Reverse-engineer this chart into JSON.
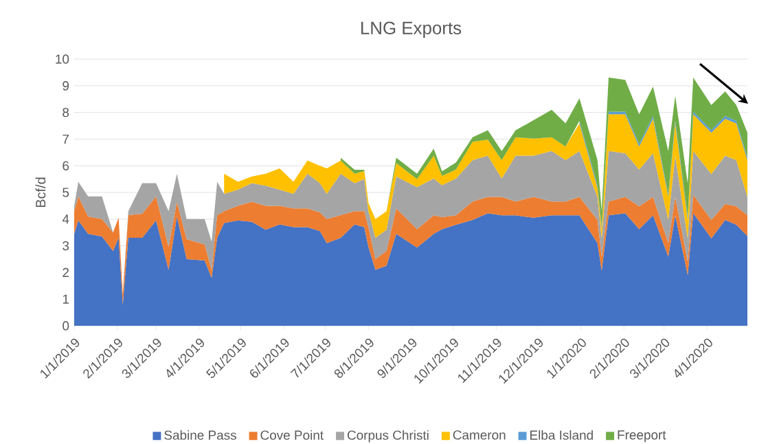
{
  "chart_data": {
    "type": "area",
    "title": "LNG Exports",
    "ylabel": "Bcf/d",
    "stacked": true,
    "grid": "y",
    "legend": "bottom",
    "x": [
      "2019-01-01",
      "2019-01-04",
      "2019-01-11",
      "2019-01-21",
      "2019-01-29",
      "2019-02-02",
      "2019-02-05",
      "2019-02-09",
      "2019-02-19",
      "2019-03-01",
      "2019-03-10",
      "2019-03-16",
      "2019-03-23",
      "2019-04-05",
      "2019-04-10",
      "2019-04-14",
      "2019-04-19",
      "2019-04-29",
      "2019-05-09",
      "2019-05-19",
      "2019-05-29",
      "2019-06-08",
      "2019-06-18",
      "2019-06-27",
      "2019-07-02",
      "2019-07-12",
      "2019-07-22",
      "2019-07-29",
      "2019-08-01",
      "2019-08-06",
      "2019-08-14",
      "2019-08-21",
      "2019-09-05",
      "2019-09-17",
      "2019-09-23",
      "2019-10-03",
      "2019-10-15",
      "2019-10-26",
      "2019-11-05",
      "2019-11-15",
      "2019-11-28",
      "2019-12-11",
      "2019-12-21",
      "2019-12-31",
      "2020-01-13",
      "2020-01-16",
      "2020-01-21",
      "2020-02-02",
      "2020-02-12",
      "2020-02-22",
      "2020-03-04",
      "2020-03-09",
      "2020-03-18",
      "2020-03-22",
      "2020-04-04",
      "2020-04-14",
      "2020-04-22",
      "2020-04-30"
    ],
    "series": [
      {
        "name": "Sabine Pass",
        "color": "#4472c4",
        "values": [
          3.45,
          3.95,
          3.45,
          3.35,
          2.8,
          3.3,
          0.8,
          3.3,
          3.3,
          3.95,
          2.1,
          4.1,
          2.5,
          2.45,
          1.8,
          3.3,
          3.85,
          3.95,
          3.9,
          3.6,
          3.8,
          3.7,
          3.7,
          3.55,
          3.1,
          3.3,
          3.8,
          3.7,
          2.95,
          2.1,
          2.25,
          3.45,
          2.93,
          3.45,
          3.62,
          3.79,
          3.97,
          4.22,
          4.14,
          4.14,
          4.05,
          4.14,
          4.14,
          4.14,
          3.1,
          2.07,
          4.14,
          4.22,
          3.62,
          4.14,
          2.59,
          4.14,
          1.9,
          4.22,
          3.28,
          3.97,
          3.79,
          3.36
        ]
      },
      {
        "name": "Cove Point",
        "color": "#ed7d31",
        "values": [
          0.85,
          0.9,
          0.65,
          0.65,
          0.7,
          0.75,
          0.4,
          0.85,
          0.9,
          0.9,
          0.85,
          0.55,
          0.75,
          0.6,
          0.3,
          0.85,
          0.45,
          0.55,
          0.75,
          0.9,
          0.7,
          0.7,
          0.7,
          0.7,
          0.9,
          0.85,
          0.5,
          0.6,
          0.75,
          0.4,
          0.55,
          0.95,
          0.69,
          0.69,
          0.45,
          0.35,
          0.69,
          0.61,
          0.69,
          0.52,
          0.78,
          0.52,
          0.52,
          0.69,
          0.87,
          0.52,
          0.52,
          0.61,
          0.86,
          0.69,
          0.51,
          0.69,
          0.51,
          0.69,
          0.69,
          0.6,
          0.69,
          0.78
        ]
      },
      {
        "name": "Corpus Christi",
        "color": "#a5a5a5",
        "values": [
          0.2,
          0.55,
          0.75,
          0.85,
          0,
          0,
          0,
          0.15,
          1.15,
          0.5,
          1.35,
          1.05,
          0.75,
          0.95,
          1.05,
          1.25,
          0.65,
          0.6,
          0.7,
          0.75,
          0.6,
          0.55,
          1.3,
          1.1,
          0.95,
          1.55,
          1.05,
          1.2,
          0.6,
          0.8,
          0.8,
          1.2,
          1.58,
          1.38,
          1.2,
          1.38,
          1.55,
          1.55,
          0.69,
          1.72,
          1.55,
          1.89,
          1.55,
          1.72,
          0.86,
          0.69,
          1.89,
          1.64,
          1.38,
          1.64,
          0.87,
          1.55,
          0.87,
          1.64,
          1.72,
          1.81,
          1.73,
          0.69
        ]
      },
      {
        "name": "Cameron",
        "color": "#ffc000",
        "values": [
          null,
          null,
          null,
          null,
          null,
          null,
          null,
          null,
          null,
          null,
          null,
          null,
          null,
          null,
          null,
          null,
          0.75,
          0.3,
          0.25,
          0.45,
          0.8,
          0.45,
          0.5,
          0.65,
          0.95,
          0.5,
          0.35,
          0.3,
          0.3,
          0.7,
          0.7,
          0.5,
          0.3,
          0.86,
          0.35,
          0.34,
          0.69,
          0.6,
          0.69,
          0.69,
          0.64,
          0.52,
          0.51,
          1.04,
          0.34,
          0.34,
          1.38,
          1.46,
          0.86,
          1.29,
          0.86,
          1.21,
          0.69,
          1.38,
          1.55,
          1.38,
          1.38,
          1.38
        ]
      },
      {
        "name": "Elba Island",
        "color": "#5b9bd5",
        "values": [
          null,
          null,
          null,
          null,
          null,
          null,
          null,
          null,
          null,
          null,
          null,
          null,
          null,
          null,
          null,
          null,
          null,
          null,
          null,
          null,
          null,
          null,
          null,
          null,
          null,
          null,
          null,
          null,
          null,
          null,
          null,
          null,
          null,
          null,
          null,
          null,
          null,
          null,
          null,
          null,
          null,
          null,
          null,
          0.1,
          0.1,
          0.1,
          0.1,
          0.1,
          0.1,
          0.1,
          0.1,
          0.1,
          0.1,
          0.1,
          0.1,
          0.1,
          0.1,
          0.1
        ]
      },
      {
        "name": "Freeport",
        "color": "#70ad47",
        "values": [
          null,
          null,
          null,
          null,
          null,
          null,
          null,
          null,
          null,
          null,
          null,
          null,
          null,
          null,
          null,
          null,
          null,
          null,
          null,
          null,
          null,
          null,
          null,
          null,
          null,
          0.1,
          0.15,
          0.05,
          0,
          0,
          0,
          0.2,
          0.2,
          0.26,
          0.17,
          0.26,
          0.17,
          0.35,
          0.34,
          0.26,
          0.69,
          1.03,
          0.87,
          0.84,
          0.94,
          0.59,
          1.28,
          1.19,
          1.11,
          1.11,
          1.62,
          0.93,
          1.27,
          1.28,
          0.94,
          0.93,
          0.59,
          0.93
        ]
      }
    ],
    "xlim": [
      "2019-01-01",
      "2020-04-30"
    ],
    "xticks": [
      {
        "value": "2019-01-01",
        "label": "1/1/2019"
      },
      {
        "value": "2019-02-01",
        "label": "2/1/2019"
      },
      {
        "value": "2019-03-01",
        "label": "3/1/2019"
      },
      {
        "value": "2019-04-01",
        "label": "4/1/2019"
      },
      {
        "value": "2019-05-01",
        "label": "5/1/2019"
      },
      {
        "value": "2019-06-01",
        "label": "6/1/2019"
      },
      {
        "value": "2019-07-01",
        "label": "7/1/2019"
      },
      {
        "value": "2019-08-01",
        "label": "8/1/2019"
      },
      {
        "value": "2019-09-01",
        "label": "9/1/2019"
      },
      {
        "value": "2019-10-01",
        "label": "10/1/2019"
      },
      {
        "value": "2019-11-01",
        "label": "11/1/2019"
      },
      {
        "value": "2019-12-01",
        "label": "12/1/2019"
      },
      {
        "value": "2020-01-01",
        "label": "1/1/2020"
      },
      {
        "value": "2020-02-01",
        "label": "2/1/2020"
      },
      {
        "value": "2020-03-01",
        "label": "3/1/2020"
      },
      {
        "value": "2020-04-01",
        "label": "4/1/2020"
      }
    ],
    "ylim": [
      0,
      10
    ],
    "yticks": [
      0,
      1,
      2,
      3,
      4,
      5,
      6,
      7,
      8,
      9,
      10
    ]
  }
}
